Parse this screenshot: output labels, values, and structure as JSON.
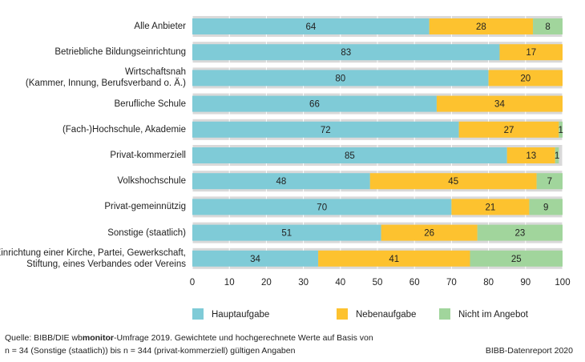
{
  "chart_data": {
    "type": "stacked-bar-horizontal",
    "categories": [
      "Alle Anbieter",
      "Betriebliche Bildungseinrichtung",
      "Wirtschaftsnah\n(Kammer, Innung, Berufsverband o. Ä.)",
      "Berufliche Schule",
      "(Fach-)Hochschule, Akademie",
      "Privat-kommerziell",
      "Volkshochschule",
      "Privat-gemeinnützig",
      "Sonstige (staatlich)",
      "Einrichtung einer Kirche, Partei, Gewerkschaft,\nStiftung, eines Verbandes oder Vereins"
    ],
    "series": [
      {
        "name": "Hauptaufgabe",
        "color": "#7fcbd7",
        "values": [
          64,
          83,
          80,
          66,
          72,
          85,
          48,
          70,
          51,
          34
        ]
      },
      {
        "name": "Nebenaufgabe",
        "color": "#fdc22f",
        "values": [
          28,
          17,
          20,
          34,
          27,
          13,
          45,
          21,
          26,
          41
        ]
      },
      {
        "name": "Nicht im Angebot",
        "color": "#a1d59c",
        "values": [
          8,
          null,
          null,
          null,
          1,
          1,
          7,
          9,
          23,
          25
        ]
      }
    ],
    "xlim": [
      0,
      100
    ],
    "xticks": [
      0,
      10,
      20,
      30,
      40,
      50,
      60,
      70,
      80,
      90,
      100
    ],
    "source": [
      "Quelle: BIBB/DIE wb",
      "monitor",
      "-Umfrage 2019. Gewichtete und hochgerechnete Werte auf Basis von",
      "n = 34 (Sonstige (staatlich)) bis n = 344 (privat-kommerziell) gültigen Angaben"
    ],
    "credit": "BIBB-Datenreport 2020"
  }
}
